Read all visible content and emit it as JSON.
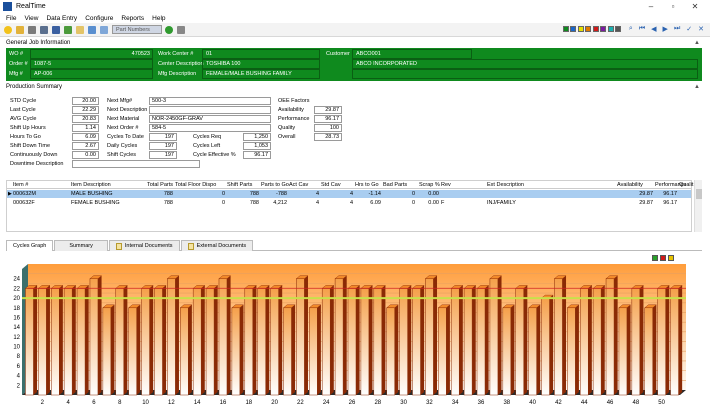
{
  "window": {
    "title": "RealTime"
  },
  "menu": [
    "File",
    "View",
    "Data Entry",
    "Configure",
    "Reports",
    "Help"
  ],
  "toolbar": {
    "combo_placeholder": "Part Numbers"
  },
  "general": {
    "header": "General Job Information",
    "wo_label": "WO #",
    "wo_value": "470523",
    "order_label": "Order #",
    "order_value": "1087-5",
    "mfg_label": "Mfg #",
    "mfg_value": "AP-006",
    "wc_label": "Work Center #",
    "wc_value": "01",
    "cd_label": "Center Description",
    "cd_value": "TOSHIBA 100",
    "md_label": "Mfg Description",
    "md_value": "FEMALE/MALE BUSHING FAMILY",
    "cust_label": "Customer",
    "cust_value": "ABCO001",
    "cust_name": "ABCO INCORPORATED"
  },
  "production": {
    "header": "Production Summary",
    "left": [
      {
        "label": "STD Cycle",
        "value": "20.00"
      },
      {
        "label": "Last Cycle",
        "value": "22.29"
      },
      {
        "label": "AVG Cycle",
        "value": "20.83"
      },
      {
        "label": "Shift Up Hours",
        "value": "1.14"
      },
      {
        "label": "Hours To Go",
        "value": "6.09"
      },
      {
        "label": "Shift Down Time",
        "value": "2.67"
      },
      {
        "label": "Continuously Down",
        "value": "0.00"
      },
      {
        "label": "Downtime Description",
        "value": ""
      }
    ],
    "mid_text": [
      {
        "label": "Next Mfg#",
        "value": "500-3"
      },
      {
        "label": "Next Description",
        "value": ""
      },
      {
        "label": "Next Material",
        "value": "NOR-2450GF-GRAV"
      },
      {
        "label": "Next Order #",
        "value": "584-5"
      }
    ],
    "mid_num": [
      {
        "label": "Cycles To Date",
        "value": "197"
      },
      {
        "label": "Daily Cycles",
        "value": "197"
      },
      {
        "label": "Shift Cycles",
        "value": "197"
      }
    ],
    "right_num": [
      {
        "label": "Cycles Req",
        "value": "1,250"
      },
      {
        "label": "Cycles Left",
        "value": "1,053"
      },
      {
        "label": "Cycle Effective %",
        "value": "96.17"
      }
    ],
    "oee": {
      "header": "OEE Factors",
      "rows": [
        {
          "label": "Availability",
          "value": "29.87"
        },
        {
          "label": "Performance",
          "value": "96.17"
        },
        {
          "label": "Quality",
          "value": "100"
        },
        {
          "label": "Overall",
          "value": "28.73"
        }
      ]
    }
  },
  "grid": {
    "columns": [
      "Item #",
      "Item Description",
      "Total Parts",
      "Total Floor Dispo",
      "Shift Parts",
      "Parts to Go",
      "Act Cav",
      "Std Cav",
      "Hrs to Go",
      "Bad Parts",
      "Scrap %",
      "Rev",
      "Ext Description",
      "Availability",
      "Performance",
      "Qualit"
    ],
    "rows": [
      [
        "000632M",
        "MALE BUSHING",
        "788",
        "0",
        "788",
        "-788",
        "4",
        "4",
        "-1.14",
        "0",
        "0.00",
        "",
        "",
        "29.87",
        "96.17",
        ""
      ],
      [
        "000632F",
        "FEMALE BUSHING",
        "788",
        "0",
        "788",
        "4,212",
        "4",
        "4",
        "6.09",
        "0",
        "0.00",
        "F",
        "INJ/FAMILY",
        "29.87",
        "96.17",
        ""
      ]
    ]
  },
  "tabs": [
    "Cycles Graph",
    "Summary",
    "Internal Documents",
    "External Documents"
  ],
  "colors": {
    "job_green": "#0f8a1e",
    "bar": "#f07a12",
    "bar_dark": "#8a2a05",
    "std_line": "#c8e04a",
    "upper_line": "#d02020"
  },
  "chart_data": {
    "type": "bar",
    "x": [
      1,
      2,
      3,
      4,
      5,
      6,
      7,
      8,
      9,
      10,
      11,
      12,
      13,
      14,
      15,
      16,
      17,
      18,
      19,
      20,
      21,
      22,
      23,
      24,
      25,
      26,
      27,
      28,
      29,
      30,
      31,
      32,
      33,
      34,
      35,
      36,
      37,
      38,
      39,
      40,
      41,
      42,
      43,
      44,
      45,
      46,
      47,
      48,
      49,
      50,
      51
    ],
    "values": [
      22,
      22,
      22,
      22,
      22,
      24,
      18,
      22,
      18,
      22,
      22,
      24,
      18,
      22,
      22,
      24,
      18,
      22,
      22,
      22,
      18,
      24,
      18,
      22,
      24,
      22,
      22,
      22,
      18,
      22,
      22,
      24,
      18,
      22,
      22,
      22,
      24,
      18,
      22,
      18,
      20,
      24,
      18,
      22,
      22,
      24,
      18,
      22,
      18,
      22,
      22
    ],
    "xticks": [
      2,
      4,
      6,
      8,
      10,
      12,
      14,
      16,
      18,
      20,
      22,
      24,
      26,
      28,
      30,
      32,
      34,
      36,
      38,
      40,
      42,
      44,
      46,
      48,
      50
    ],
    "yticks": [
      2,
      4,
      6,
      8,
      10,
      12,
      14,
      16,
      18,
      20,
      22,
      24
    ],
    "ylim": [
      0,
      26
    ],
    "reference_lines": [
      20,
      21
    ],
    "title": "",
    "xlabel": "",
    "ylabel": ""
  }
}
